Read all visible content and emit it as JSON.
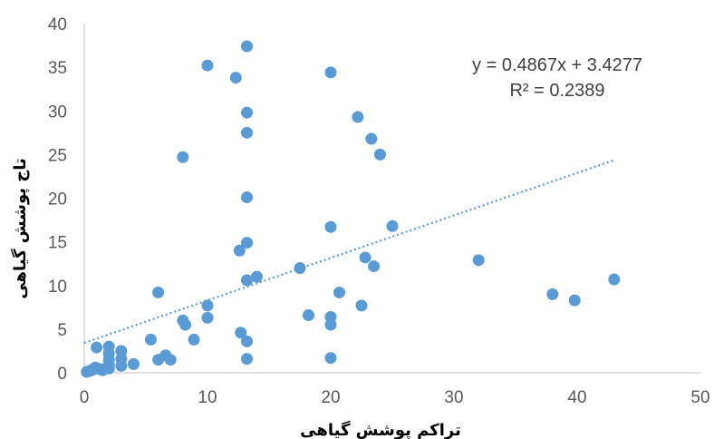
{
  "chart_data": {
    "type": "scatter",
    "xlabel": "تراکم پوشش گیاهی",
    "ylabel": "تاج پوشش گیاهی",
    "xlim": [
      0,
      50
    ],
    "ylim": [
      0,
      40
    ],
    "x_ticks": [
      "0",
      "10",
      "20",
      "30",
      "40",
      "50"
    ],
    "y_ticks": [
      "0",
      "5",
      "10",
      "15",
      "20",
      "25",
      "30",
      "35",
      "40"
    ],
    "grid": false,
    "marker_color": "#5b9bd5",
    "trendline_color": "#5b9bd5",
    "trendline": {
      "slope": 0.4867,
      "intercept": 3.4277,
      "x_range": [
        0,
        43
      ]
    },
    "equation_label": "y = 0.4867x + 3.4277",
    "r2_label": "R² = 0.2389",
    "series": [
      {
        "points": [
          [
            0.2,
            0.1
          ],
          [
            0.4,
            0.2
          ],
          [
            0.6,
            0.3
          ],
          [
            0.7,
            0.4
          ],
          [
            0.9,
            0.6
          ],
          [
            1.1,
            0.5
          ],
          [
            1.3,
            0.4
          ],
          [
            1.5,
            0.3
          ],
          [
            1.7,
            0.5
          ],
          [
            1.0,
            2.9
          ],
          [
            2.0,
            3.0
          ],
          [
            2.0,
            2.2
          ],
          [
            2.0,
            1.5
          ],
          [
            2.0,
            0.9
          ],
          [
            2.0,
            0.5
          ],
          [
            3.0,
            2.5
          ],
          [
            3.0,
            1.6
          ],
          [
            3.0,
            0.8
          ],
          [
            4.0,
            1.0
          ],
          [
            5.4,
            3.8
          ],
          [
            6.0,
            1.5
          ],
          [
            6.6,
            2.0
          ],
          [
            7.0,
            1.5
          ],
          [
            6.0,
            9.2
          ],
          [
            8.0,
            6.0
          ],
          [
            8.2,
            5.5
          ],
          [
            8.0,
            24.7
          ],
          [
            8.9,
            3.8
          ],
          [
            10.0,
            6.3
          ],
          [
            10.0,
            7.7
          ],
          [
            10.0,
            35.2
          ],
          [
            12.3,
            33.8
          ],
          [
            12.6,
            14.0
          ],
          [
            12.7,
            4.6
          ],
          [
            13.2,
            37.4
          ],
          [
            13.2,
            29.8
          ],
          [
            13.2,
            27.5
          ],
          [
            13.2,
            20.1
          ],
          [
            13.2,
            14.9
          ],
          [
            13.2,
            10.6
          ],
          [
            13.2,
            3.6
          ],
          [
            13.2,
            1.6
          ],
          [
            14.0,
            11.0
          ],
          [
            17.5,
            12.0
          ],
          [
            18.2,
            6.6
          ],
          [
            20.0,
            34.4
          ],
          [
            20.0,
            16.7
          ],
          [
            20.0,
            6.4
          ],
          [
            20.0,
            5.5
          ],
          [
            20.0,
            1.7
          ],
          [
            20.7,
            9.2
          ],
          [
            22.2,
            29.3
          ],
          [
            22.5,
            7.7
          ],
          [
            22.8,
            13.2
          ],
          [
            23.3,
            26.8
          ],
          [
            23.5,
            12.2
          ],
          [
            24.0,
            25.0
          ],
          [
            25.0,
            16.8
          ],
          [
            32.0,
            12.9
          ],
          [
            38.0,
            9.0
          ],
          [
            39.8,
            8.3
          ],
          [
            43.0,
            10.7
          ]
        ]
      }
    ]
  }
}
